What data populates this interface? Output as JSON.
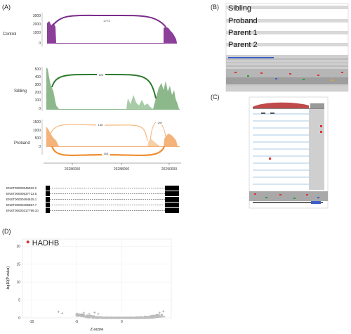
{
  "panels": {
    "A": "(A)",
    "B": "(B)",
    "C": "(C)",
    "D": "(D)"
  },
  "panel_a": {
    "tracks": [
      {
        "name": "Control",
        "color": "#8b3f99",
        "ticks": [
          "3000",
          "2000",
          "1000",
          "0"
        ],
        "junctions": [
          "2773"
        ]
      },
      {
        "name": "Sibling",
        "color": "#3b7d3b",
        "ticks": [
          "500",
          "400",
          "300",
          "200",
          "100",
          "0"
        ],
        "junctions": [
          "224"
        ]
      },
      {
        "name": "Proband",
        "color": "#f0a052",
        "ticks": [
          "1500",
          "1000",
          "500",
          "0"
        ],
        "junctions": [
          "136",
          "297",
          "303"
        ]
      }
    ],
    "x_ticks": [
      "26286000",
      "26288000",
      "26290000"
    ],
    "transcripts": [
      "ENST00000545822.2",
      "ENST00000537713.5",
      "ENST00000494615.1",
      "ENST00000405867.7",
      "ENST00000317799.10"
    ]
  },
  "panel_b": {
    "labels": [
      "Sibling",
      "Proband",
      "Parent 1",
      "Parent 2"
    ]
  },
  "chart_data": {
    "type": "scatter",
    "xlabel": "Z-score",
    "ylabel": "-log10(P-value)",
    "xlim": [
      -11,
      5.5
    ],
    "ylim": [
      0,
      22
    ],
    "x_ticks": [
      "-10",
      "-5",
      "0"
    ],
    "y_ticks": [
      "20",
      "15",
      "10",
      "5",
      "0"
    ],
    "highlight": {
      "label": "HADHB",
      "x": -10.4,
      "y": 21.2,
      "color": "#d32f2f"
    },
    "outliers": [
      [
        -7.0,
        1.7
      ],
      [
        -6.6,
        1.3
      ],
      [
        -4.2,
        1.4
      ],
      [
        -4.4,
        0.9
      ],
      [
        -3.6,
        1.1
      ],
      [
        -3.0,
        1.5
      ],
      [
        -2.6,
        1.1
      ],
      [
        3.9,
        0.9
      ],
      [
        4.6,
        1.8
      ],
      [
        4.2,
        1.4
      ],
      [
        -4.8,
        0.6
      ],
      [
        4.7,
        0.3
      ]
    ],
    "point_color": "#bdbdbd"
  }
}
